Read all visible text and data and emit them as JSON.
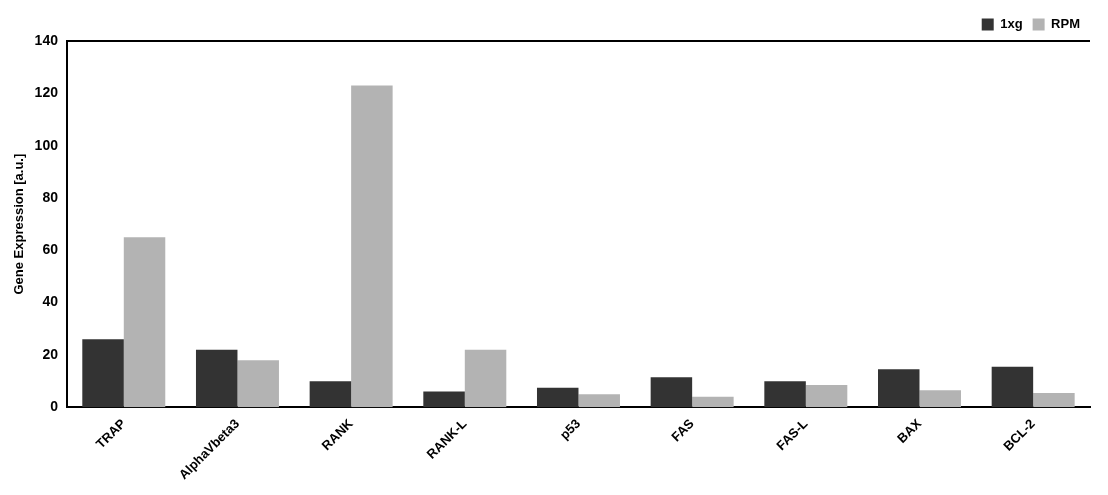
{
  "chart_data": {
    "type": "bar",
    "ylabel": "Gene Expression [a.u.]",
    "categories": [
      "TRAP",
      "AlphaVbeta3",
      "RANK",
      "RANK-L",
      "p53",
      "FAS",
      "FAS-L",
      "BAX",
      "BCL-2"
    ],
    "series": [
      {
        "name": "1xg",
        "color": "#333333",
        "values": [
          26,
          22,
          10,
          6,
          7.5,
          11.5,
          10,
          14.5,
          15.5
        ]
      },
      {
        "name": "RPM",
        "color": "#b3b3b3",
        "values": [
          65,
          18,
          123,
          22,
          5,
          4,
          8.5,
          6.5,
          5.5
        ]
      }
    ],
    "ylim": [
      0,
      140
    ],
    "yticks": [
      0,
      20,
      40,
      60,
      80,
      100,
      120,
      140
    ],
    "grid": false,
    "legend": "top"
  }
}
